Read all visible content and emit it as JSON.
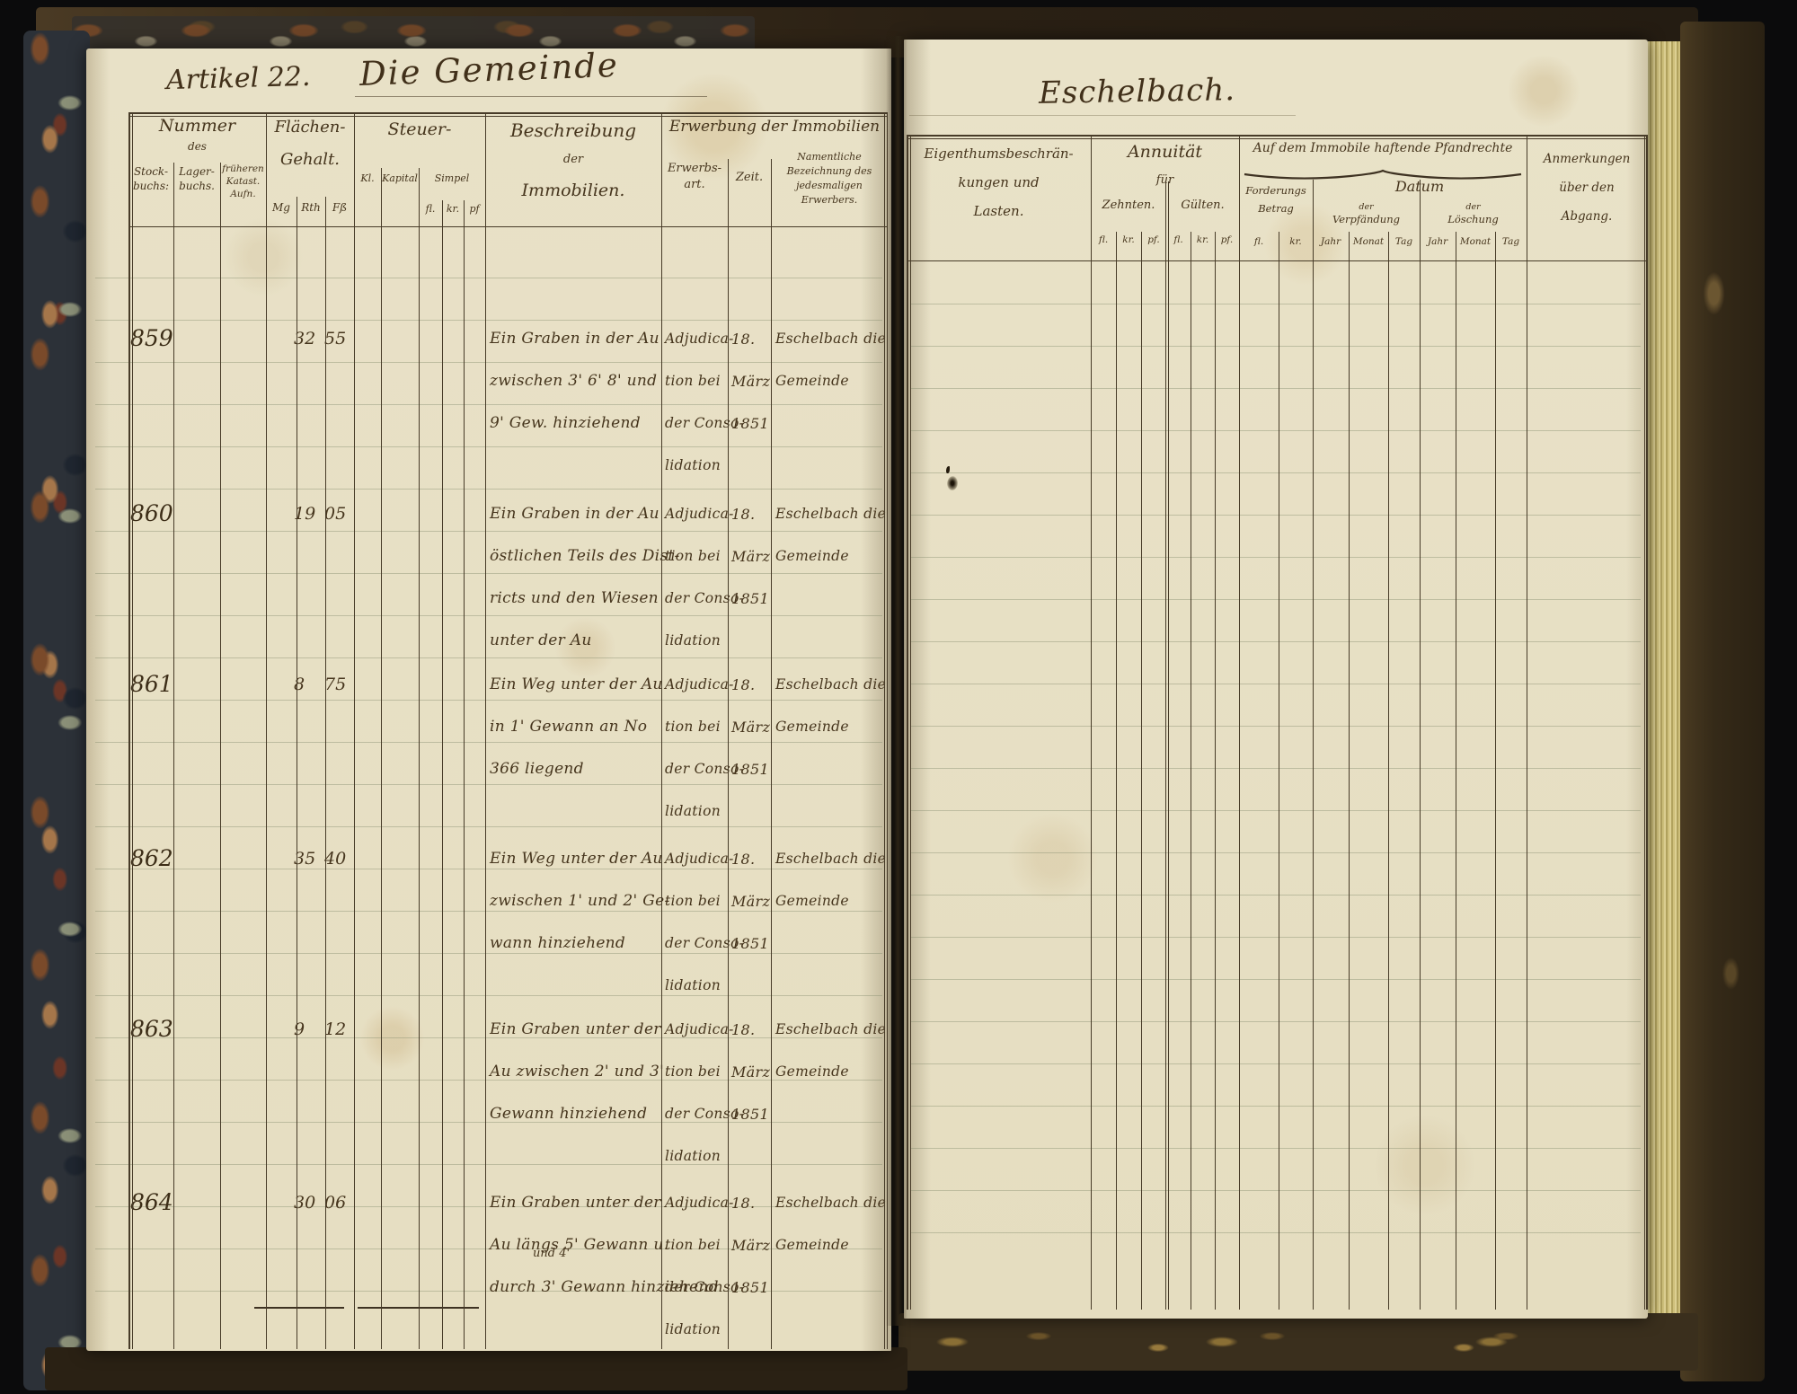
{
  "page": {
    "article_title": "Artikel 22.",
    "subject_title": "Die Gemeinde",
    "place_title": "Eschelbach."
  },
  "lh": {
    "nummer": "Nummer",
    "nummer_des": "des",
    "stock1": "Stock-",
    "stock2": "buchs:",
    "lager1": "Lager-",
    "lager2": "buchs.",
    "kat1": "früheren",
    "kat2": "Katast.",
    "kat3": "Aufn.",
    "flaechen1": "Flächen-",
    "flaechen2": "Gehalt.",
    "mg": "Mg",
    "rth": "Rth",
    "fss": "Fß",
    "steuer": "Steuer-",
    "kl": "Kl.",
    "kapital": "Kapital",
    "simpel": "Simpel",
    "fl": "fl.",
    "kr": "kr.",
    "pf": "pf",
    "beschr1": "Beschreibung",
    "beschr2": "der",
    "beschr3": "Immobilien.",
    "erwerbung": "Erwerbung der Immobilien",
    "erwart1": "Erwerbs-",
    "erwart2": "art.",
    "zeit": "Zeit.",
    "nam1": "Namentliche",
    "nam2": "Bezeichnung des",
    "nam3": "jedesmaligen",
    "nam4": "Erwerbers."
  },
  "rh": {
    "last1": "Eigenthumsbeschrän-",
    "last2": "kungen und",
    "last3": "Lasten.",
    "annu": "Annuität",
    "fuer": "für",
    "zehnten": "Zehnten.",
    "guelten": "Gülten.",
    "fl": "fl.",
    "kr": "kr.",
    "pf": "pf.",
    "pfand": "Auf dem Immobile haftende Pfandrechte",
    "ford1": "Forderungs",
    "ford2": "Betrag",
    "datum": "Datum",
    "der": "der",
    "verpf": "Verpfändung",
    "loesch": "Löschung",
    "jahr": "Jahr",
    "monat": "Monat",
    "tag": "Tag",
    "anm1": "Anmerkungen",
    "anm2": "über den",
    "anm3": "Abgang."
  },
  "rows": [
    {
      "nr": "859",
      "flaechen": {
        "mg": "",
        "rth": "32",
        "fss": "55"
      },
      "beschreibung": [
        "Ein Graben in der Au",
        "zwischen 3' 6' 8' und",
        "9' Gew. hinziehend",
        ""
      ],
      "erwerbsart": [
        "Adjudica-",
        "tion bei",
        "der Conso-",
        "lidation"
      ],
      "zeit": [
        "18.",
        "März",
        "1851"
      ],
      "erwerber": [
        "Eschelbach die",
        "Gemeinde"
      ]
    },
    {
      "nr": "860",
      "flaechen": {
        "mg": "",
        "rth": "19",
        "fss": "05"
      },
      "beschreibung": [
        "Ein Graben in der Au",
        "östlichen Teils des Dist-",
        "ricts und den Wiesen",
        "unter der Au"
      ],
      "erwerbsart": [
        "Adjudica-",
        "tion bei",
        "der Conso-",
        "lidation"
      ],
      "zeit": [
        "18.",
        "März",
        "1851"
      ],
      "erwerber": [
        "Eschelbach die",
        "Gemeinde"
      ]
    },
    {
      "nr": "861",
      "flaechen": {
        "mg": "",
        "rth": "8",
        "fss": "75"
      },
      "beschreibung": [
        "Ein Weg unter der Au",
        "in 1' Gewann an No",
        "366 liegend",
        ""
      ],
      "erwerbsart": [
        "Adjudica-",
        "tion bei",
        "der Conso-",
        "lidation"
      ],
      "zeit": [
        "18.",
        "März",
        "1851"
      ],
      "erwerber": [
        "Eschelbach die",
        "Gemeinde"
      ]
    },
    {
      "nr": "862",
      "flaechen": {
        "mg": "",
        "rth": "35",
        "fss": "40"
      },
      "beschreibung": [
        "Ein Weg unter der Au",
        "zwischen 1' und 2' Ge-",
        "wann hinziehend",
        ""
      ],
      "erwerbsart": [
        "Adjudica-",
        "tion bei",
        "der Conso-",
        "lidation"
      ],
      "zeit": [
        "18.",
        "März",
        "1851"
      ],
      "erwerber": [
        "Eschelbach die",
        "Gemeinde"
      ]
    },
    {
      "nr": "863",
      "flaechen": {
        "mg": "",
        "rth": "9",
        "fss": "12"
      },
      "beschreibung": [
        "Ein Graben unter der",
        "Au zwischen 2' und 3'",
        "Gewann hinziehend",
        ""
      ],
      "erwerbsart": [
        "Adjudica-",
        "tion bei",
        "der Conso-",
        "lidation"
      ],
      "zeit": [
        "18.",
        "März",
        "1851"
      ],
      "erwerber": [
        "Eschelbach die",
        "Gemeinde"
      ]
    },
    {
      "nr": "864",
      "flaechen": {
        "mg": "",
        "rth": "30",
        "fss": "06"
      },
      "beschreibung": [
        "Ein Graben unter der",
        "Au längs 5' Gewann u.",
        "durch 3' Gewann hinziehend",
        ""
      ],
      "einschub": "und 4'",
      "erwerbsart": [
        "Adjudica-",
        "tion bei",
        "der Conso-",
        "lidation"
      ],
      "zeit": [
        "18.",
        "März",
        "1851"
      ],
      "erwerber": [
        "Eschelbach die",
        "Gemeinde"
      ]
    }
  ]
}
